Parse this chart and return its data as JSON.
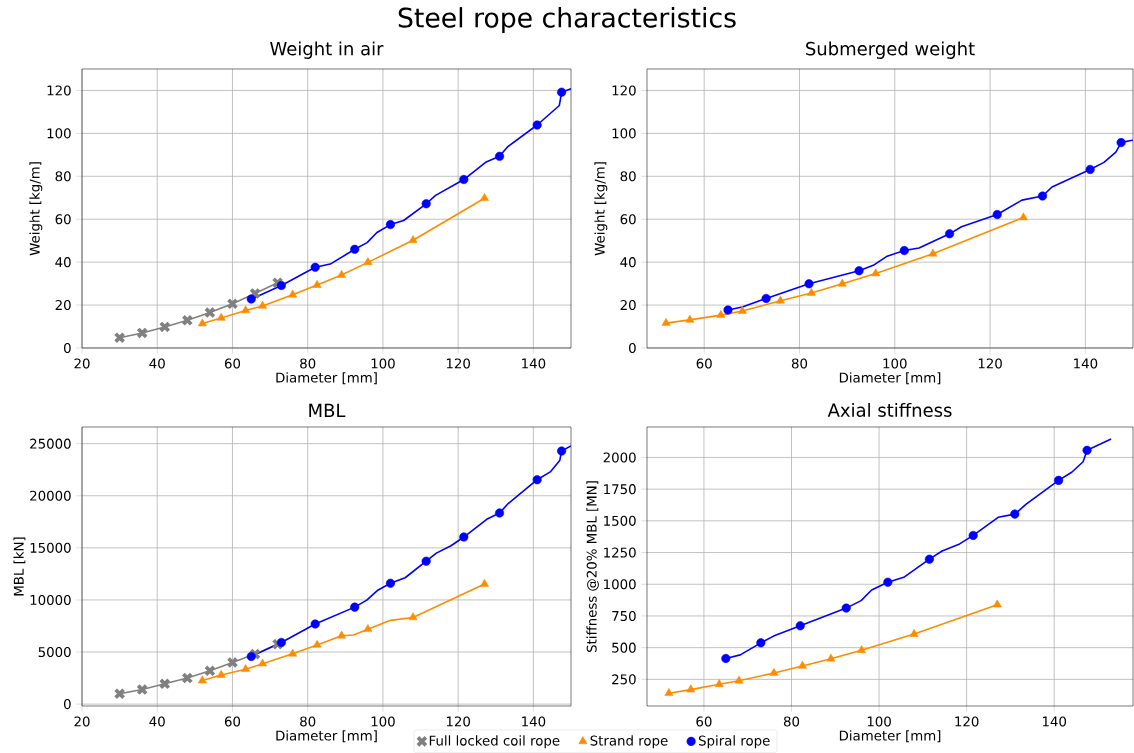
{
  "chart_data": [
    {
      "type": "line",
      "title": "Weight in air",
      "xlabel": "Diameter [mm]",
      "ylabel": "Weight [kg/m]",
      "annotations": [
        "Steel rope characteristics"
      ],
      "grid": true,
      "xlim": [
        20,
        150
      ],
      "ylim": [
        0,
        130
      ],
      "xticks": [
        20,
        40,
        60,
        80,
        100,
        120,
        140
      ],
      "yticks": [
        0,
        20,
        40,
        60,
        80,
        100,
        120
      ],
      "series": [
        {
          "marker": "none",
          "color": "#808080",
          "x": [
            30,
            36,
            42,
            48,
            54,
            60,
            66,
            72
          ],
          "values": [
            4.8,
            7.0,
            9.8,
            12.9,
            16.5,
            20.6,
            25.4,
            30.4
          ]
        },
        {
          "type": "scatter",
          "marker": "cross",
          "color": "#808080",
          "x": [
            30,
            36,
            42,
            48,
            54,
            60,
            66,
            72
          ],
          "values": [
            4.8,
            7.0,
            9.8,
            12.9,
            16.5,
            20.6,
            25.4,
            30.4
          ]
        },
        {
          "marker": "none",
          "color": "#ff8c00",
          "x": [
            52,
            57,
            63.5,
            68,
            76,
            82.5,
            89,
            96,
            108,
            127
          ],
          "values": [
            11.4,
            14.0,
            17.5,
            19.6,
            24.8,
            29.3,
            34.0,
            39.9,
            50.2,
            69.8
          ]
        },
        {
          "type": "scatter",
          "marker": "triangle",
          "color": "#ff8c00",
          "x": [
            52,
            57,
            63.5,
            68,
            76,
            82.5,
            89,
            96,
            108,
            127
          ],
          "values": [
            11.4,
            14.0,
            17.5,
            19.6,
            24.8,
            29.3,
            34.0,
            39.9,
            50.2,
            69.8
          ]
        },
        {
          "marker": "none",
          "color": "#0000ff",
          "x": [
            65,
            67.3,
            73,
            82,
            86,
            92.5,
            95.8,
            98.4,
            102,
            105.5,
            111.5,
            114,
            121.5,
            127.3,
            131,
            133.1,
            141,
            146.9,
            147.5,
            150
          ],
          "values": [
            22.8,
            24.6,
            29.1,
            37.6,
            39.1,
            46.0,
            49.1,
            53.8,
            57.5,
            59.4,
            67.2,
            71.1,
            78.5,
            86.5,
            89.3,
            93.7,
            103.9,
            113.0,
            119.2,
            120.8
          ]
        },
        {
          "type": "scatter",
          "marker": "circle",
          "color": "#0000ff",
          "x": [
            65,
            73,
            82,
            92.5,
            102,
            111.5,
            121.5,
            131,
            141,
            147.5
          ],
          "values": [
            22.8,
            29.1,
            37.6,
            46.0,
            57.5,
            67.2,
            78.5,
            89.3,
            103.9,
            119.2
          ]
        }
      ]
    },
    {
      "type": "line",
      "title": "Submerged weight",
      "xlabel": "Diameter [mm]",
      "ylabel": "Weight [kg/m]",
      "grid": true,
      "xlim": [
        48,
        150
      ],
      "ylim": [
        0,
        130
      ],
      "xticks": [
        60,
        80,
        100,
        120,
        140
      ],
      "yticks": [
        0,
        20,
        40,
        60,
        80,
        100,
        120
      ],
      "series": [
        {
          "marker": "none",
          "color": "#ff8c00",
          "x": [
            52,
            57,
            63.5,
            68,
            76,
            82.5,
            89,
            96,
            108,
            127
          ],
          "values": [
            11.6,
            13.1,
            15.3,
            17.2,
            22.0,
            25.6,
            29.9,
            34.7,
            43.9,
            60.8
          ]
        },
        {
          "type": "scatter",
          "marker": "triangle",
          "color": "#ff8c00",
          "x": [
            52,
            57,
            63.5,
            68,
            76,
            82.5,
            89,
            96,
            108,
            127
          ],
          "values": [
            11.6,
            13.1,
            15.3,
            17.2,
            22.0,
            25.6,
            29.9,
            34.7,
            43.9,
            60.8
          ]
        },
        {
          "marker": "none",
          "color": "#0000ff",
          "x": [
            65,
            68,
            73,
            82,
            92.5,
            95.5,
            98.4,
            102,
            105.1,
            111.5,
            114,
            121.5,
            126.7,
            131,
            133,
            141,
            143.9,
            146.4,
            147.5,
            150
          ],
          "values": [
            17.7,
            19.1,
            23.1,
            29.9,
            36.0,
            38.5,
            42.8,
            45.4,
            46.6,
            53.2,
            56.5,
            62.2,
            68.9,
            70.8,
            75.0,
            83.2,
            86.5,
            91.3,
            95.7,
            96.9
          ]
        },
        {
          "type": "scatter",
          "marker": "circle",
          "color": "#0000ff",
          "x": [
            65,
            73,
            82,
            92.5,
            102,
            111.5,
            121.5,
            131,
            141,
            147.5
          ],
          "values": [
            17.7,
            23.1,
            29.9,
            36.0,
            45.4,
            53.2,
            62.2,
            70.8,
            83.2,
            95.7
          ]
        }
      ]
    },
    {
      "type": "line",
      "title": "MBL",
      "xlabel": "Diameter [mm]",
      "ylabel": "MBL [kN]",
      "grid": true,
      "legend": "bottom",
      "xlim": [
        20,
        150
      ],
      "ylim": [
        -180,
        26600
      ],
      "xticks": [
        20,
        40,
        60,
        80,
        100,
        120,
        140
      ],
      "yticks": [
        0,
        5000,
        10000,
        15000,
        20000,
        25000
      ],
      "series": [
        {
          "marker": "none",
          "color": "#808080",
          "x": [
            30,
            36,
            42,
            48,
            54,
            60,
            66,
            72
          ],
          "values": [
            1000,
            1400,
            1950,
            2500,
            3200,
            4000,
            4800,
            5750
          ]
        },
        {
          "type": "scatter",
          "marker": "cross",
          "name": "Full locked coil rope",
          "color": "#808080",
          "x": [
            30,
            36,
            42,
            48,
            54,
            60,
            66,
            72
          ],
          "values": [
            1000,
            1400,
            1950,
            2500,
            3200,
            4000,
            4800,
            5750
          ]
        },
        {
          "marker": "none",
          "color": "#ff8c00",
          "x": [
            52,
            57,
            63.5,
            68,
            76,
            82.5,
            89,
            92.2,
            96,
            102,
            108,
            127
          ],
          "values": [
            2260,
            2790,
            3350,
            3880,
            4830,
            5680,
            6560,
            6630,
            7190,
            8040,
            8320,
            11530
          ]
        },
        {
          "type": "scatter",
          "marker": "triangle",
          "name": "Strand rope",
          "color": "#ff8c00",
          "x": [
            52,
            57,
            63.5,
            68,
            76,
            82.5,
            89,
            96,
            108,
            127
          ],
          "values": [
            2260,
            2790,
            3350,
            3880,
            4830,
            5680,
            6560,
            7190,
            8320,
            11530
          ]
        },
        {
          "marker": "none",
          "color": "#0000ff",
          "x": [
            65,
            73,
            82,
            92.5,
            95.7,
            98.5,
            102,
            105.9,
            111.5,
            114.2,
            118.1,
            121.5,
            127.6,
            131,
            133.3,
            141,
            144.6,
            147,
            147.5,
            150
          ],
          "values": [
            4580,
            5920,
            7690,
            9310,
            9980,
            10900,
            11600,
            12130,
            13720,
            14490,
            15200,
            16040,
            17740,
            18340,
            19250,
            21540,
            22320,
            23380,
            24290,
            24790
          ]
        },
        {
          "type": "scatter",
          "marker": "circle",
          "name": "Spiral rope",
          "color": "#0000ff",
          "x": [
            65,
            73,
            82,
            92.5,
            102,
            111.5,
            121.5,
            131,
            141,
            147.5
          ],
          "values": [
            4580,
            5920,
            7690,
            9310,
            11600,
            13720,
            16040,
            18340,
            21540,
            24290
          ]
        }
      ]
    },
    {
      "type": "line",
      "title": "Axial stiffness",
      "xlabel": "Diameter [mm]",
      "ylabel": "Stiffness @20% MBL [MN]",
      "grid": true,
      "xlim": [
        47,
        158
      ],
      "ylim": [
        40,
        2240
      ],
      "xticks": [
        60,
        80,
        100,
        120,
        140
      ],
      "yticks": [
        250,
        500,
        750,
        1000,
        1250,
        1500,
        1750,
        2000
      ],
      "series": [
        {
          "marker": "none",
          "color": "#ff8c00",
          "x": [
            52,
            57,
            63.5,
            68,
            76,
            82.5,
            89,
            96,
            108,
            127
          ],
          "values": [
            141,
            169,
            211,
            239,
            300,
            356,
            412,
            479,
            607,
            839
          ]
        },
        {
          "type": "scatter",
          "marker": "triangle",
          "color": "#ff8c00",
          "x": [
            52,
            57,
            63.5,
            68,
            76,
            82.5,
            89,
            96,
            108,
            127
          ],
          "values": [
            141,
            169,
            211,
            239,
            300,
            356,
            412,
            479,
            607,
            839
          ]
        },
        {
          "marker": "none",
          "color": "#0000ff",
          "x": [
            65,
            68.3,
            73,
            75.9,
            82,
            92.5,
            95.9,
            98.3,
            102,
            105.8,
            111.5,
            114.4,
            118.4,
            121.5,
            127.2,
            131,
            133.6,
            141,
            144,
            146.6,
            147.5,
            153
          ],
          "values": [
            415,
            443,
            538,
            591,
            672,
            812,
            871,
            955,
            1016,
            1058,
            1198,
            1262,
            1318,
            1385,
            1528,
            1553,
            1631,
            1819,
            1883,
            1966,
            2056,
            2145
          ]
        },
        {
          "type": "scatter",
          "marker": "circle",
          "color": "#0000ff",
          "x": [
            65,
            73,
            82,
            92.5,
            102,
            111.5,
            121.5,
            131,
            141,
            147.5
          ],
          "values": [
            415,
            538,
            672,
            812,
            1016,
            1198,
            1385,
            1553,
            1819,
            2056
          ]
        }
      ]
    }
  ]
}
